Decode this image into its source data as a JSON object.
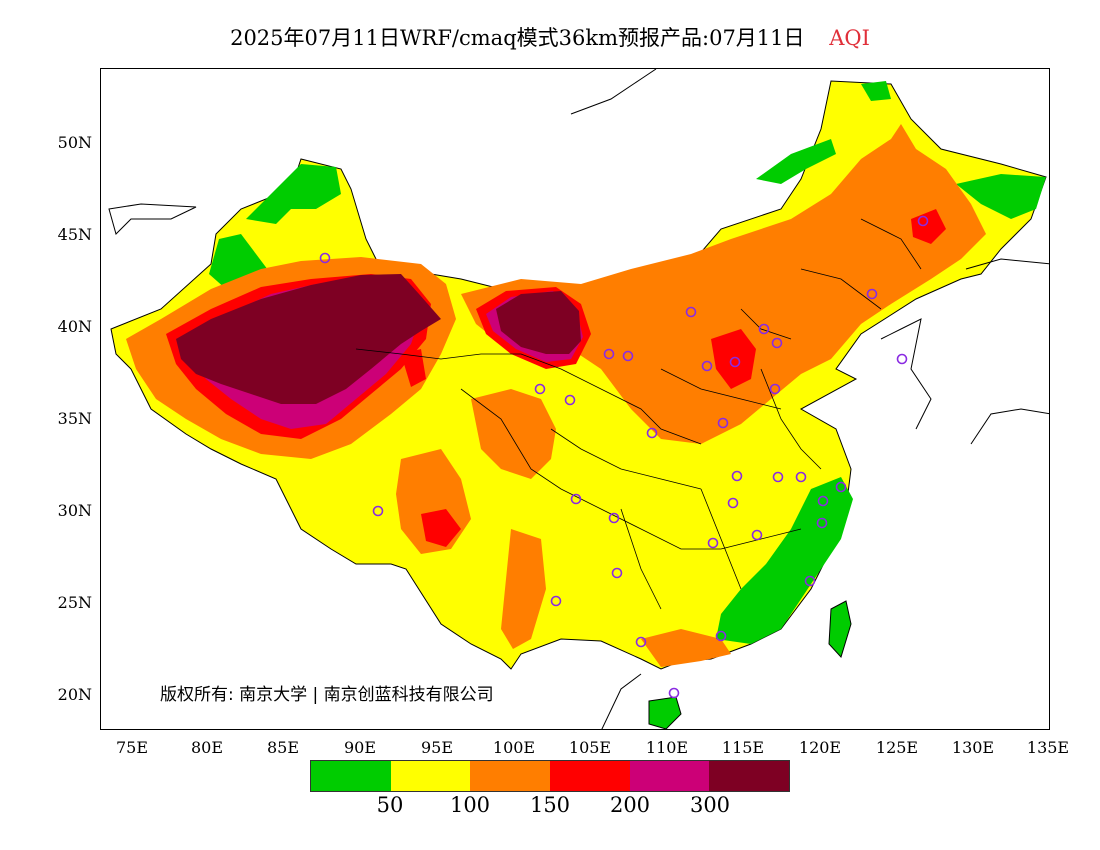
{
  "title": {
    "main": "2025年07月11日WRF/cmaq模式36km预报产品:07月11日",
    "variable": "AQI",
    "variable_color": "#e0303a"
  },
  "copyright": "版权所有: 南京大学 | 南京创蓝科技有限公司",
  "axes": {
    "y_labels": [
      "50N",
      "45N",
      "40N",
      "35N",
      "30N",
      "25N",
      "20N"
    ],
    "x_labels": [
      "75E",
      "80E",
      "85E",
      "90E",
      "95E",
      "100E",
      "105E",
      "110E",
      "115E",
      "120E",
      "125E",
      "130E",
      "135E"
    ]
  },
  "legend": {
    "colors": [
      "#00cc00",
      "#ffff00",
      "#ff7e00",
      "#ff0000",
      "#cc0077",
      "#7e0023"
    ],
    "labels": [
      "50",
      "100",
      "150",
      "200",
      "300"
    ]
  },
  "station_marker_color": "#8a2be2"
}
